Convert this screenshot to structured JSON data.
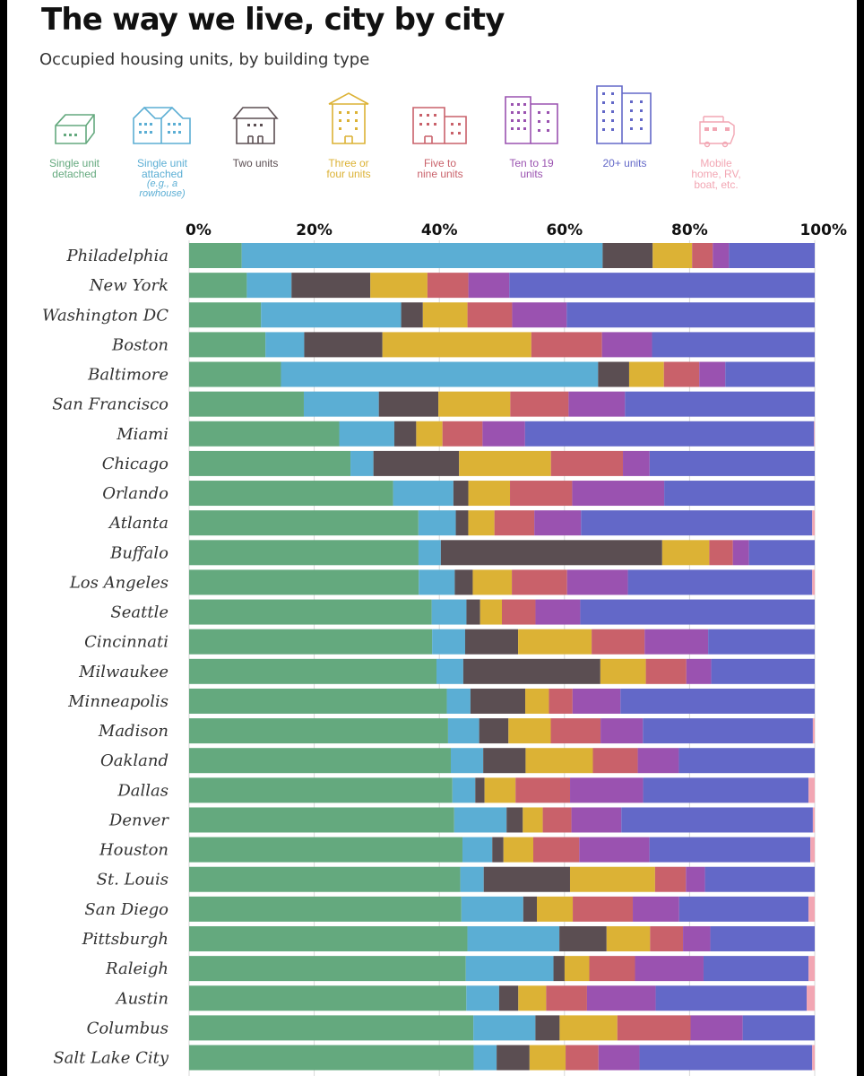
{
  "header": {
    "title": "The way we live, city by city",
    "subtitle": "Occupied housing units, by building type"
  },
  "legend": [
    {
      "label": "Single unit\ndetached",
      "sublabel": "",
      "color": "#64a97e",
      "icon": "detached-house-icon"
    },
    {
      "label": "Single unit\nattached",
      "sublabel": "(e.g., a\nrowhouse)",
      "color": "#5baed4",
      "icon": "rowhouse-icon"
    },
    {
      "label": "Two units",
      "sublabel": "",
      "color": "#5b4e52",
      "icon": "duplex-icon"
    },
    {
      "label": "Three or\nfour units",
      "sublabel": "",
      "color": "#dcb235",
      "icon": "small-apartment-icon"
    },
    {
      "label": "Five to\nnine units",
      "sublabel": "",
      "color": "#c9616a",
      "icon": "apartment-building-icon"
    },
    {
      "label": "Ten to 19\nunits",
      "sublabel": "",
      "color": "#9a52b0",
      "icon": "mid-rise-building-icon"
    },
    {
      "label": "20+ units",
      "sublabel": "",
      "color": "#6368c8",
      "icon": "high-rise-building-icon"
    },
    {
      "label": "Mobile\nhome, RV,\nboat, etc.",
      "sublabel": "",
      "color": "#f2a6b3",
      "icon": "rv-icon"
    }
  ],
  "chart_data": {
    "type": "bar",
    "orientation": "horizontal",
    "stacked": true,
    "xlim": [
      0,
      100
    ],
    "x_ticks": [
      "0%",
      "20%",
      "40%",
      "60%",
      "80%",
      "100%"
    ],
    "tick_values": [
      0,
      20,
      40,
      60,
      80,
      100
    ],
    "grid": true,
    "categories": [
      "Philadelphia",
      "New York",
      "Washington DC",
      "Boston",
      "Baltimore",
      "San Francisco",
      "Miami",
      "Chicago",
      "Orlando",
      "Atlanta",
      "Buffalo",
      "Los Angeles",
      "Seattle",
      "Cincinnati",
      "Milwaukee",
      "Minneapolis",
      "Madison",
      "Oakland",
      "Dallas",
      "Denver",
      "Houston",
      "St. Louis",
      "San Diego",
      "Pittsburgh",
      "Raleigh",
      "Austin",
      "Columbus",
      "Salt Lake City"
    ],
    "series": [
      {
        "name": "Single unit detached",
        "color": "#64a97e",
        "values": [
          8.4,
          9.3,
          11.6,
          12.2,
          14.8,
          18.5,
          24.0,
          26.0,
          32.8,
          36.8,
          37.0,
          37.0,
          39.0,
          39.0,
          39.7,
          41.4,
          41.6,
          42.0,
          42.5,
          42.5,
          44.0,
          44.0,
          44.0,
          44.8,
          44.8,
          44.8,
          45.8,
          45.8
        ]
      },
      {
        "name": "Single unit attached",
        "color": "#5baed4",
        "values": [
          57.7,
          7.2,
          22.6,
          6.2,
          51.1,
          12.1,
          8.8,
          3.7,
          9.7,
          6.0,
          3.6,
          5.8,
          5.6,
          5.3,
          4.3,
          3.8,
          5.0,
          5.2,
          3.7,
          8.4,
          4.8,
          3.8,
          10.0,
          14.8,
          14.2,
          5.3,
          10.0,
          3.7
        ]
      },
      {
        "name": "Two units",
        "color": "#5b4e52",
        "values": [
          8.0,
          12.7,
          3.5,
          12.5,
          5.0,
          9.6,
          3.5,
          13.8,
          2.4,
          2.0,
          35.7,
          2.9,
          2.2,
          8.5,
          22.0,
          8.8,
          4.7,
          6.8,
          1.5,
          2.6,
          1.8,
          14.0,
          2.2,
          7.6,
          1.8,
          3.1,
          3.9,
          5.3
        ]
      },
      {
        "name": "Three or four units",
        "color": "#dcb235",
        "values": [
          6.3,
          9.2,
          7.2,
          23.8,
          5.6,
          11.6,
          4.2,
          14.8,
          6.7,
          4.2,
          7.6,
          6.3,
          3.5,
          11.8,
          7.3,
          3.8,
          6.8,
          10.8,
          5.0,
          3.2,
          4.8,
          13.8,
          5.8,
          7.0,
          4.0,
          4.5,
          9.3,
          5.8
        ]
      },
      {
        "name": "Five to nine units",
        "color": "#c9616a",
        "values": [
          3.3,
          6.6,
          7.2,
          11.3,
          5.7,
          9.4,
          6.4,
          11.6,
          10.0,
          6.4,
          3.8,
          8.9,
          5.4,
          8.5,
          6.5,
          3.8,
          8.0,
          7.2,
          8.8,
          4.6,
          7.4,
          5.0,
          9.7,
          5.3,
          7.4,
          6.6,
          11.8,
          5.3
        ]
      },
      {
        "name": "Ten to 19 units",
        "color": "#9a52b0",
        "values": [
          2.6,
          6.6,
          8.8,
          8.0,
          4.2,
          9.1,
          6.8,
          4.3,
          14.8,
          7.5,
          2.6,
          9.8,
          7.2,
          10.2,
          4.0,
          7.7,
          6.8,
          6.6,
          11.8,
          8.0,
          11.3,
          3.1,
          7.5,
          4.4,
          11.1,
          11.1,
          8.4,
          6.6
        ]
      },
      {
        "name": "20+ units",
        "color": "#6368c8",
        "values": [
          13.7,
          49.2,
          40.0,
          26.0,
          14.4,
          30.6,
          46.2,
          26.6,
          24.2,
          37.1,
          10.6,
          29.7,
          37.7,
          17.1,
          16.6,
          31.2,
          27.3,
          21.8,
          26.7,
          30.7,
          25.9,
          17.8,
          20.9,
          16.8,
          17.0,
          24.4,
          11.6,
          27.8
        ]
      },
      {
        "name": "Mobile home, RV, boat, etc.",
        "color": "#f2a6b3",
        "values": [
          0.0,
          0.0,
          0.0,
          0.0,
          0.0,
          0.0,
          0.1,
          0.0,
          0.0,
          0.4,
          0.0,
          0.4,
          0.0,
          0.0,
          0.0,
          0.0,
          0.3,
          0.0,
          1.0,
          0.3,
          0.7,
          0.0,
          1.0,
          0.0,
          1.0,
          1.3,
          0.0,
          0.4
        ]
      }
    ]
  }
}
